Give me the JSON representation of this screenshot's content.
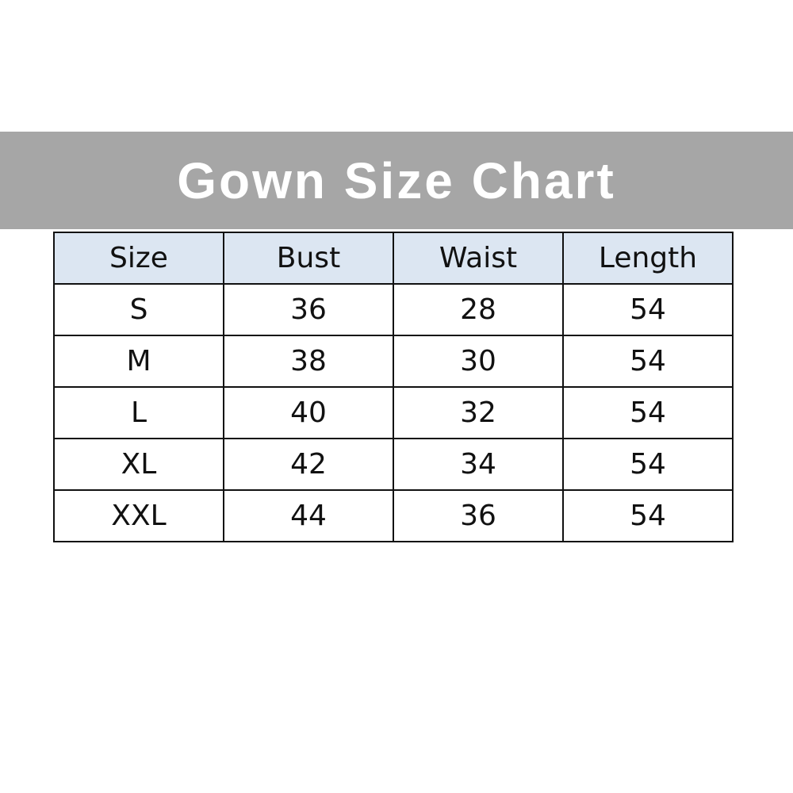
{
  "title": "Gown Size Chart",
  "headers": [
    "Size",
    "Bust",
    "Waist",
    "Length"
  ],
  "rows": [
    [
      "S",
      "36",
      "28",
      "54"
    ],
    [
      "M",
      "38",
      "30",
      "54"
    ],
    [
      "L",
      "40",
      "32",
      "54"
    ],
    [
      "XL",
      "42",
      "34",
      "54"
    ],
    [
      "XXL",
      "44",
      "36",
      "54"
    ]
  ],
  "colors": {
    "banner": "#a6a6a6",
    "header_bg": "#dce6f2"
  }
}
